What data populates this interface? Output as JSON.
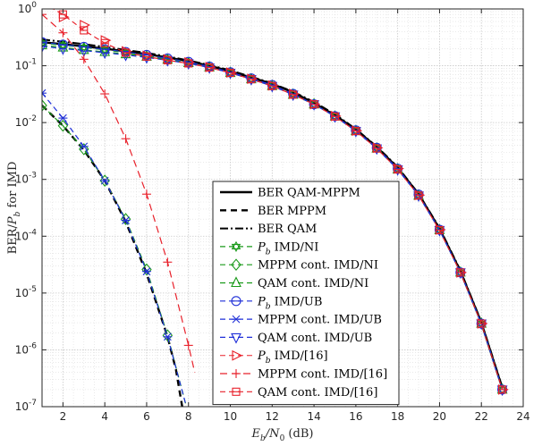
{
  "chart_data": {
    "type": "line",
    "xlabel": "E_b/N_0 (dB)",
    "xlabel_parts": {
      "main": "E",
      "sub1": "b",
      "mid": "/N",
      "sub2": "0",
      "tail": " (dB)"
    },
    "ylabel": "BER/P_b for IMD",
    "ylabel_parts": {
      "pre": "BER/",
      "main": "P",
      "sub": "b",
      "tail": " for IMD"
    },
    "xlim": [
      1,
      24
    ],
    "ylim": [
      1e-07,
      1
    ],
    "yscale": "log",
    "grid": true,
    "minor_grid": true,
    "legend_position": "bottom-center",
    "x_ticks": [
      2,
      4,
      6,
      8,
      10,
      12,
      14,
      16,
      18,
      20,
      22,
      24
    ],
    "y_ticks": [
      {
        "value": 1,
        "base": "10",
        "exp": "0"
      },
      {
        "value": 0.1,
        "base": "10",
        "exp": "-1"
      },
      {
        "value": 0.01,
        "base": "10",
        "exp": "-2"
      },
      {
        "value": 0.001,
        "base": "10",
        "exp": "-3"
      },
      {
        "value": 0.0001,
        "base": "10",
        "exp": "-4"
      },
      {
        "value": 1e-05,
        "base": "10",
        "exp": "-5"
      },
      {
        "value": 1e-06,
        "base": "10",
        "exp": "-6"
      },
      {
        "value": 1e-07,
        "base": "10",
        "exp": "-7"
      }
    ],
    "series": [
      {
        "name": "BER QAM-MPPM",
        "color": "#000000",
        "dash": "solid",
        "width": 2.4,
        "marker": "none",
        "x": [
          1,
          2,
          3,
          4,
          5,
          6,
          7,
          8,
          9,
          10,
          11,
          12,
          13,
          14,
          15,
          16,
          17,
          18,
          19,
          20,
          21,
          22,
          23
        ],
        "y": [
          0.26,
          0.24,
          0.22,
          0.2,
          0.18,
          0.16,
          0.14,
          0.12,
          0.1,
          0.08,
          0.062,
          0.048,
          0.034,
          0.022,
          0.0135,
          0.0075,
          0.0037,
          0.0016,
          0.00055,
          0.000135,
          2.4e-05,
          3e-06,
          2.1e-07
        ]
      },
      {
        "name": "BER MPPM",
        "color": "#000000",
        "dash": "7,5",
        "width": 2.4,
        "marker": "none",
        "x": [
          1,
          2,
          3,
          4,
          5,
          6,
          7,
          7.4,
          7.7
        ],
        "y": [
          0.02,
          0.0088,
          0.0033,
          0.00095,
          0.00018,
          2.2e-05,
          1.7e-06,
          4.5e-07,
          1e-07
        ]
      },
      {
        "name": "BER QAM",
        "color": "#000000",
        "dash": "9,3,2,3",
        "width": 2.0,
        "marker": "none",
        "x": [
          1,
          2,
          3,
          4,
          5,
          6,
          7,
          8,
          9,
          10,
          11,
          12,
          13,
          14,
          15,
          16,
          17,
          18,
          19,
          20,
          21,
          22,
          23
        ],
        "y": [
          0.29,
          0.265,
          0.24,
          0.215,
          0.19,
          0.168,
          0.146,
          0.124,
          0.103,
          0.083,
          0.064,
          0.049,
          0.035,
          0.023,
          0.014,
          0.0077,
          0.0038,
          0.00165,
          0.00056,
          0.00014,
          2.5e-05,
          3.1e-06,
          2.2e-07
        ]
      },
      {
        "name": "P_b IMD/NI",
        "color": "#1a9a1a",
        "dash": "6,4",
        "width": 1.2,
        "marker": "hexagram",
        "x": [
          1,
          2,
          3,
          4,
          5,
          6,
          7,
          8,
          9,
          10,
          11,
          12,
          13,
          14,
          15,
          16,
          17,
          18,
          19,
          20,
          21,
          22,
          23
        ],
        "y": [
          0.25,
          0.23,
          0.21,
          0.19,
          0.17,
          0.15,
          0.13,
          0.115,
          0.095,
          0.076,
          0.059,
          0.045,
          0.032,
          0.021,
          0.013,
          0.0072,
          0.0036,
          0.00155,
          0.00053,
          0.00013,
          2.3e-05,
          2.9e-06,
          2e-07
        ]
      },
      {
        "name": "MPPM cont. IMD/NI",
        "color": "#1a9a1a",
        "dash": "6,4",
        "width": 1.2,
        "marker": "diamond",
        "x": [
          1,
          2,
          3,
          4,
          5,
          6,
          7,
          7.9
        ],
        "y": [
          0.02,
          0.0088,
          0.0034,
          0.00095,
          0.0002,
          2.6e-05,
          1.8e-06,
          1e-07
        ]
      },
      {
        "name": "QAM cont. IMD/NI",
        "color": "#1a9a1a",
        "dash": "6,4",
        "width": 1.2,
        "marker": "triangle-up",
        "x": [
          1,
          2,
          3,
          4,
          5,
          6,
          7,
          8,
          9,
          10,
          11,
          12,
          13,
          14,
          15,
          16,
          17,
          18,
          19,
          20,
          21,
          22,
          23
        ],
        "y": [
          0.23,
          0.21,
          0.19,
          0.175,
          0.16,
          0.145,
          0.128,
          0.112,
          0.094,
          0.075,
          0.058,
          0.044,
          0.031,
          0.021,
          0.0128,
          0.0071,
          0.0035,
          0.0015,
          0.00052,
          0.000128,
          2.3e-05,
          2.9e-06,
          2e-07
        ]
      },
      {
        "name": "P_b IMD/UB",
        "color": "#1f2fd8",
        "dash": "6,4",
        "width": 1.2,
        "marker": "circle-bar",
        "x": [
          1,
          2,
          3,
          4,
          5,
          6,
          7,
          8,
          9,
          10,
          11,
          12,
          13,
          14,
          15,
          16,
          17,
          18,
          19,
          20,
          21,
          22,
          23
        ],
        "y": [
          0.26,
          0.235,
          0.215,
          0.195,
          0.175,
          0.155,
          0.135,
          0.117,
          0.097,
          0.077,
          0.06,
          0.046,
          0.032,
          0.021,
          0.013,
          0.0073,
          0.0036,
          0.00155,
          0.00054,
          0.00013,
          2.3e-05,
          2.9e-06,
          2e-07
        ]
      },
      {
        "name": "MPPM cont. IMD/UB",
        "color": "#1f2fd8",
        "dash": "6,4",
        "width": 1.2,
        "marker": "asterisk",
        "x": [
          1,
          2,
          3,
          4,
          5,
          6,
          7,
          7.9
        ],
        "y": [
          0.033,
          0.012,
          0.0038,
          0.00095,
          0.00019,
          2.4e-05,
          1.7e-06,
          1e-07
        ]
      },
      {
        "name": "QAM cont. IMD/UB",
        "color": "#1f2fd8",
        "dash": "6,4",
        "width": 1.2,
        "marker": "triangle-down",
        "x": [
          1,
          2,
          3,
          4,
          5,
          6,
          7,
          8,
          9,
          10,
          11,
          12,
          13,
          14,
          15,
          16,
          17,
          18,
          19,
          20,
          21,
          22,
          23
        ],
        "y": [
          0.22,
          0.2,
          0.185,
          0.17,
          0.155,
          0.14,
          0.125,
          0.11,
          0.093,
          0.075,
          0.058,
          0.044,
          0.031,
          0.021,
          0.0128,
          0.0071,
          0.0035,
          0.0015,
          0.00052,
          0.000128,
          2.3e-05,
          2.9e-06,
          2e-07
        ]
      },
      {
        "name": "P_b IMD/[16]",
        "color": "#e8202a",
        "dash": "none",
        "width": 1.0,
        "marker": "triangle-right",
        "x": [
          2,
          3,
          4,
          5,
          6,
          7,
          8,
          9,
          10,
          11,
          12,
          13,
          14,
          15,
          16,
          17,
          18,
          19,
          20,
          21,
          22,
          23
        ],
        "y": [
          0.72,
          0.52,
          0.28,
          0.18,
          0.15,
          0.13,
          0.115,
          0.095,
          0.076,
          0.059,
          0.045,
          0.032,
          0.021,
          0.013,
          0.0072,
          0.0036,
          0.00155,
          0.00053,
          0.00013,
          2.3e-05,
          2.9e-06,
          2e-07
        ]
      },
      {
        "name": "MPPM cont. IMD/[16]",
        "color": "#e8202a",
        "dash": "8,5",
        "width": 1.2,
        "marker": "plus",
        "x": [
          1,
          2,
          3,
          4,
          5,
          6,
          7,
          8,
          8.3
        ],
        "y": [
          0.8,
          0.38,
          0.13,
          0.032,
          0.0052,
          0.00055,
          3.5e-05,
          1.2e-06,
          4e-07
        ]
      },
      {
        "name": "QAM cont. IMD/[16]",
        "color": "#e8202a",
        "dash": "6,4",
        "width": 1.2,
        "marker": "square-bar",
        "x": [
          1,
          2,
          3,
          4,
          5,
          6,
          7,
          8,
          9,
          10,
          11,
          12,
          13,
          14,
          15,
          16,
          17,
          18,
          19,
          20,
          21,
          22,
          23
        ],
        "y": [
          1.3,
          0.8,
          0.42,
          0.25,
          0.17,
          0.145,
          0.125,
          0.11,
          0.093,
          0.075,
          0.058,
          0.044,
          0.031,
          0.021,
          0.0128,
          0.0071,
          0.0035,
          0.0015,
          0.00052,
          0.000128,
          2.3e-05,
          2.9e-06,
          2e-07
        ]
      }
    ],
    "legend_entries": [
      {
        "text": "BER QAM-MPPM"
      },
      {
        "text": "BER MPPM"
      },
      {
        "text": "BER QAM"
      },
      {
        "pre": "",
        "main": "P",
        "sub": "b",
        "tail": " IMD/NI"
      },
      {
        "text": "MPPM cont. IMD/NI"
      },
      {
        "text": "QAM cont. IMD/NI"
      },
      {
        "pre": "",
        "main": "P",
        "sub": "b",
        "tail": " IMD/UB"
      },
      {
        "text": "MPPM cont. IMD/UB"
      },
      {
        "text": "QAM cont. IMD/UB"
      },
      {
        "pre": "",
        "main": "P",
        "sub": "b",
        "tail": " IMD/[16]"
      },
      {
        "text": "MPPM cont. IMD/[16]"
      },
      {
        "text": "QAM cont. IMD/[16]"
      }
    ]
  }
}
